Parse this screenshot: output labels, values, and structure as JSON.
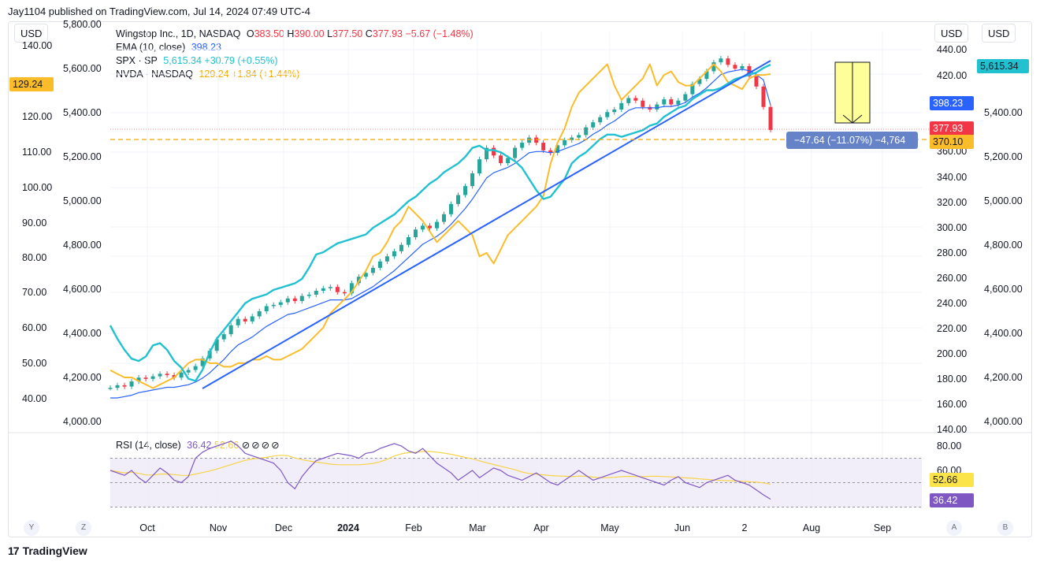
{
  "header": {
    "publisher": "Jay1104 published on TradingView.com, Jul 14, 2024 07:49 UTC-4"
  },
  "currency_buttons": {
    "left": "USD",
    "right1": "USD",
    "right2": "USD"
  },
  "legend": {
    "main": {
      "name": "Wingstop Inc., 1D, NASDAQ",
      "o_label": "O",
      "o": "383.50",
      "h_label": "H",
      "h": "390.00",
      "l_label": "L",
      "l": "377.50",
      "c_label": "C",
      "c": "377.93",
      "change": "−5.67 (−1.48%)"
    },
    "ema": {
      "name": "EMA (10, close)",
      "value": "398.23"
    },
    "spx": {
      "name": "SPX · SP",
      "value": "5,615.34 +30.79 (+0.55%)"
    },
    "nvda": {
      "name": "NVDA · NASDAQ",
      "value": "129.24 +1.84 (+1.44%)"
    }
  },
  "measure_label": "−47.64 (−11.07%) −4,764",
  "rsi_legend": {
    "name": "RSI (14, close)",
    "value": "36.42",
    "ma": "52.66"
  },
  "footer": {
    "left_btn1": "Y",
    "left_btn2": "Z",
    "right_btn1": "A",
    "right_btn2": "B",
    "logo": "TradingView"
  },
  "colors": {
    "wing_up": "#26a69a",
    "wing_down": "#f23645",
    "ema": "#2962ff",
    "spx": "#22c1cf",
    "nvda": "#fbbc2a",
    "trend": "#2962ff",
    "rsi": "#7e57c2",
    "rsi_ma": "#f7d34a",
    "measure_box": "#ffff99"
  },
  "chart_data": {
    "type": "line",
    "x_labels": [
      "Oct",
      "Nov",
      "Dec",
      "2024",
      "Feb",
      "Mar",
      "Apr",
      "May",
      "Jun",
      "2",
      "Aug",
      "Sep"
    ],
    "axes": {
      "nvda_axis": {
        "ticks": [
          "140.00",
          "120.00",
          "110.00",
          "100.00",
          "90.00",
          "80.00",
          "70.00",
          "60.00",
          "50.00",
          "40.00"
        ],
        "current": "129.24"
      },
      "spx_left_axis": {
        "ticks": [
          "5,800.00",
          "5,600.00",
          "5,400.00",
          "5,200.00",
          "5,000.00",
          "4,800.00",
          "4,600.00",
          "4,400.00",
          "4,200.00",
          "4,000.00"
        ]
      },
      "wing_axis": {
        "ticks": [
          "440.00",
          "420.00",
          "360.00",
          "340.00",
          "320.00",
          "300.00",
          "280.00",
          "260.00",
          "240.00",
          "220.00",
          "200.00",
          "180.00",
          "160.00",
          "140.00"
        ],
        "labels": {
          "ema": "398.23",
          "close": "377.93",
          "level": "370.10"
        }
      },
      "spx_right_axis": {
        "ticks": [
          "5,400.00",
          "5,200.00",
          "5,000.00",
          "4,800.00",
          "4,600.00",
          "4,400.00",
          "4,200.00",
          "4,000.00"
        ],
        "current": "5,615.34"
      },
      "rsi_axis": {
        "ticks": [
          "80.00",
          "60.00"
        ],
        "labels": {
          "ma": "52.66",
          "rsi": "36.42"
        }
      }
    },
    "series": [
      {
        "name": "Wingstop Inc., 1D, NASDAQ",
        "kind": "candles",
        "values": [
          176,
          178,
          177,
          181,
          184,
          183,
          185,
          187,
          186,
          184,
          188,
          190,
          193,
          199,
          205,
          214,
          218,
          225,
          230,
          228,
          232,
          236,
          240,
          241,
          243,
          246,
          244,
          248,
          249,
          252,
          254,
          255,
          251,
          250,
          258,
          263,
          266,
          270,
          275,
          279,
          283,
          288,
          294,
          300,
          303,
          301,
          306,
          312,
          320,
          327,
          334,
          344,
          355,
          364,
          358,
          352,
          356,
          364,
          368,
          372,
          368,
          362,
          360,
          366,
          370,
          372,
          374,
          380,
          384,
          388,
          392,
          394,
          399,
          403,
          401,
          396,
          394,
          398,
          402,
          398,
          401,
          406,
          414,
          418,
          424,
          431,
          434,
          429,
          426,
          428,
          420,
          412,
          396,
          378
        ]
      },
      {
        "name": "EMA (10, close)",
        "values": [
          177,
          177,
          178,
          179,
          181,
          182,
          183,
          184,
          185,
          185,
          186,
          187,
          189,
          192,
          196,
          201,
          206,
          212,
          217,
          220,
          223,
          227,
          231,
          234,
          237,
          240,
          241,
          243,
          245,
          247,
          249,
          251,
          251,
          251,
          252,
          255,
          258,
          261,
          265,
          269,
          273,
          278,
          283,
          288,
          293,
          296,
          299,
          303,
          308,
          314,
          320,
          327,
          335,
          343,
          347,
          349,
          351,
          354,
          358,
          362,
          363,
          363,
          362,
          363,
          365,
          367,
          369,
          372,
          376,
          379,
          383,
          386,
          390,
          394,
          396,
          396,
          396,
          396,
          397,
          397,
          398,
          400,
          404,
          407,
          411,
          416,
          421,
          423,
          424,
          425,
          424,
          421,
          417,
          398
        ]
      },
      {
        "name": "SPX · SP",
        "values": [
          4440,
          4380,
          4330,
          4290,
          4280,
          4300,
          4350,
          4360,
          4330,
          4280,
          4250,
          4200,
          4190,
          4240,
          4320,
          4380,
          4420,
          4460,
          4500,
          4540,
          4560,
          4570,
          4580,
          4600,
          4610,
          4620,
          4630,
          4650,
          4700,
          4760,
          4770,
          4790,
          4810,
          4820,
          4830,
          4840,
          4850,
          4880,
          4900,
          4920,
          4940,
          4970,
          5000,
          5020,
          5050,
          5080,
          5100,
          5130,
          5150,
          5170,
          5200,
          5240,
          5250,
          5230,
          5230,
          5220,
          5200,
          5180,
          5150,
          5100,
          5050,
          5010,
          5020,
          5060,
          5100,
          5170,
          5200,
          5220,
          5250,
          5280,
          5300,
          5300,
          5290,
          5300,
          5310,
          5320,
          5340,
          5350,
          5380,
          5400,
          5420,
          5430,
          5460,
          5480,
          5500,
          5500,
          5510,
          5530,
          5550,
          5560,
          5570,
          5580,
          5600,
          5615.34
        ]
      },
      {
        "name": "NVDA · NASDAQ",
        "values": [
          46,
          45,
          44,
          44,
          43,
          42,
          41,
          42,
          43,
          44,
          46,
          48,
          49,
          49,
          48,
          48,
          47,
          47,
          48,
          48,
          49,
          49,
          50,
          49,
          49,
          50,
          51,
          52,
          54,
          56,
          58,
          62,
          64,
          66,
          68,
          71,
          74,
          78,
          79,
          82,
          86,
          88,
          92,
          90,
          88,
          85,
          82,
          84,
          86,
          88,
          86,
          84,
          78,
          79,
          76,
          80,
          84,
          86,
          88,
          90,
          92,
          95,
          104,
          110,
          114,
          120,
          124,
          126,
          128,
          130,
          132,
          126,
          122,
          124,
          126,
          128,
          132,
          126,
          129,
          130,
          127,
          126,
          126,
          128,
          130,
          132,
          130,
          127,
          126,
          125,
          128,
          129,
          129,
          129.24
        ]
      },
      {
        "name": "RSI (14, close)",
        "values": [
          60,
          58,
          56,
          60,
          54,
          50,
          56,
          62,
          58,
          52,
          50,
          55,
          70,
          75,
          78,
          80,
          82,
          84,
          80,
          74,
          72,
          70,
          68,
          66,
          60,
          50,
          45,
          55,
          62,
          68,
          70,
          72,
          74,
          73,
          72,
          70,
          74,
          75,
          78,
          80,
          82,
          80,
          76,
          74,
          78,
          72,
          66,
          62,
          58,
          52,
          56,
          60,
          54,
          58,
          62,
          60,
          56,
          54,
          52,
          55,
          58,
          54,
          50,
          48,
          52,
          56,
          60,
          56,
          52,
          54,
          56,
          58,
          60,
          58,
          56,
          54,
          52,
          50,
          48,
          52,
          55,
          50,
          48,
          46,
          50,
          52,
          54,
          56,
          52,
          50,
          48,
          44,
          40,
          36.42
        ]
      }
    ]
  }
}
